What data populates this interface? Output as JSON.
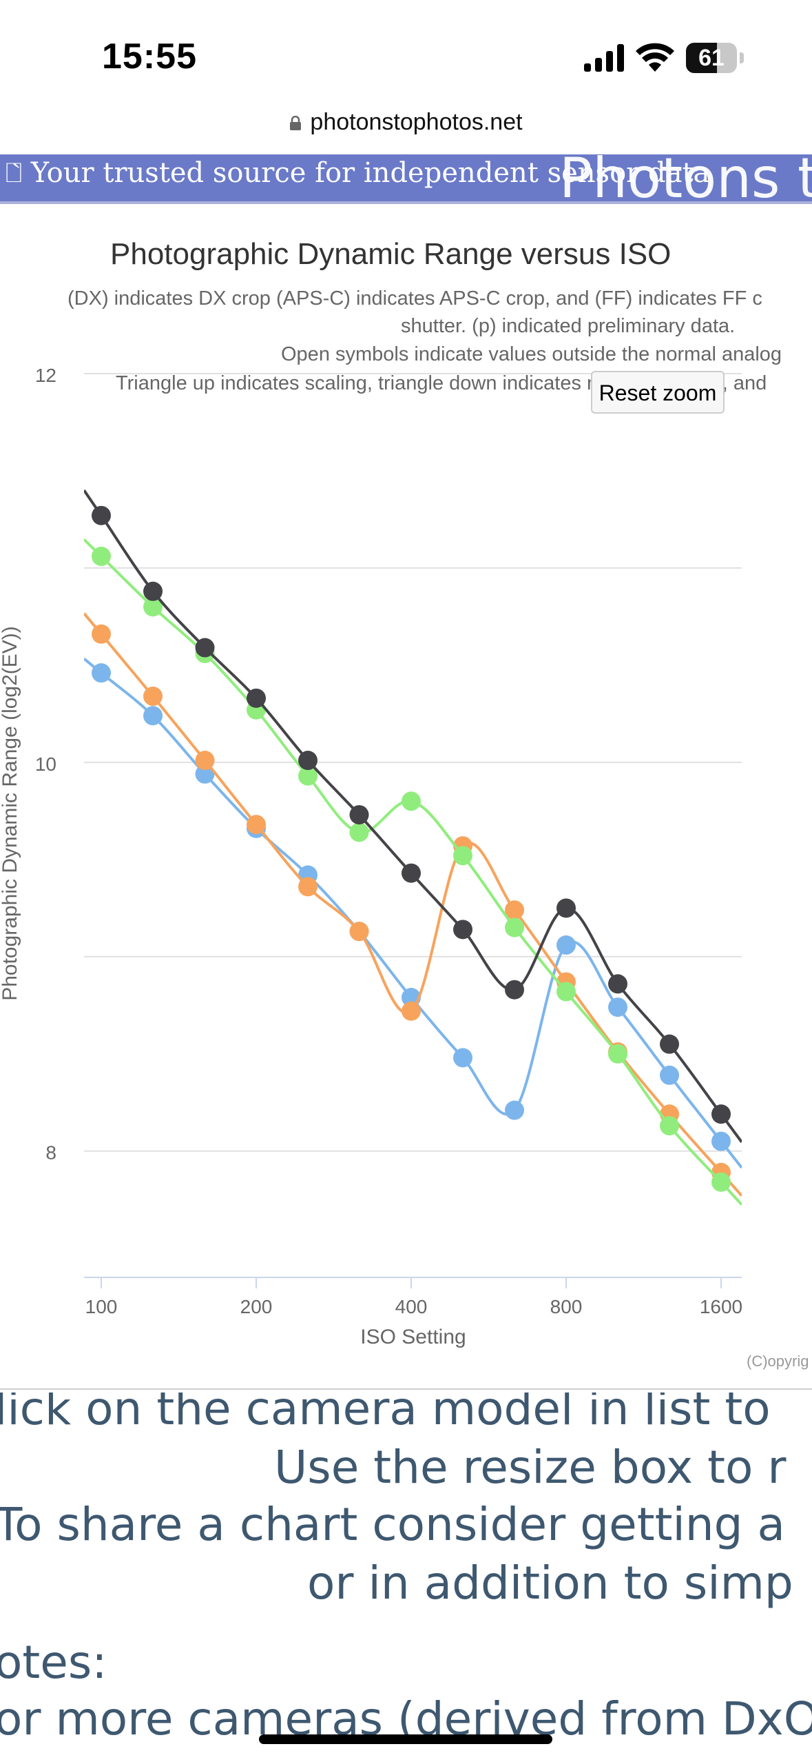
{
  "status_bar": {
    "time": "15:55",
    "battery": "61",
    "battery_level": 0.61
  },
  "browser": {
    "url": "photonstophotos.net"
  },
  "banner": {
    "subtitle": "Your trusted source for independent sensor data",
    "title": "Photons t"
  },
  "chart_text": {
    "title": "Photographic Dynamic Range versus ISO",
    "subtitle_lines": [
      "(DX) indicates DX crop (APS-C) indicates APS-C crop, and (FF) indicates FF c",
      "shutter. (p) indicated preliminary data.",
      "Open symbols indicate values outside the normal analog",
      "Triangle up indicates scaling, triangle down indicates noise reduction, and"
    ],
    "credit": "(C)opyrig"
  },
  "reset_zoom_label": "Reset zoom",
  "chart_data": {
    "type": "line",
    "title": "Photographic Dynamic Range versus ISO",
    "xlabel": "ISO Setting",
    "ylabel": "Photographic Dynamic Range (log2(EV))",
    "x_scale": "log2",
    "x_ticks": [
      100,
      200,
      400,
      800,
      1600
    ],
    "y_ticks": [
      8,
      10,
      12
    ],
    "xlim": [
      95,
      1750
    ],
    "ylim": [
      7.35,
      12
    ],
    "grid": true,
    "legend": "none",
    "x": [
      100,
      141,
      200,
      283,
      400,
      566,
      800,
      1131,
      1600
    ],
    "series": [
      {
        "color": "#434348",
        "marker_x": [
          100,
          126,
          159,
          200,
          252,
          317,
          400,
          504,
          635,
          800,
          1008,
          1270,
          1600
        ],
        "marker_y": [
          11.27,
          10.88,
          10.59,
          10.33,
          10.01,
          9.73,
          9.43,
          9.14,
          8.83,
          9.25,
          8.86,
          8.55,
          8.19
        ]
      },
      {
        "color": "#90ed7d",
        "marker_x": [
          100,
          126,
          159,
          200,
          252,
          317,
          400,
          504,
          635,
          800,
          1008,
          1270,
          1600
        ],
        "marker_y": [
          11.06,
          10.8,
          10.56,
          10.27,
          9.93,
          9.64,
          9.8,
          9.52,
          9.15,
          8.82,
          8.5,
          8.13,
          7.84
        ]
      },
      {
        "color": "#f7a35c",
        "marker_x": [
          100,
          126,
          159,
          200,
          252,
          317,
          400,
          504,
          635,
          800,
          1008,
          1270,
          1600
        ],
        "marker_y": [
          10.66,
          10.34,
          10.01,
          9.68,
          9.36,
          9.13,
          8.72,
          9.57,
          9.24,
          8.87,
          8.51,
          8.19,
          7.89
        ]
      },
      {
        "color": "#7cb5ec",
        "marker_x": [
          100,
          126,
          159,
          200,
          252,
          317,
          400,
          504,
          635,
          800,
          1008,
          1270,
          1600
        ],
        "marker_y": [
          10.46,
          10.24,
          9.94,
          9.66,
          9.42,
          9.13,
          8.79,
          8.48,
          8.21,
          9.06,
          8.74,
          8.39,
          8.05
        ]
      }
    ]
  },
  "notes": {
    "lines": [
      "lick on the camera model in list to",
      "Use the resize box to r",
      "To share a chart consider getting a",
      "or in addition to simp",
      "otes:",
      "or more cameras (derived from DxO"
    ]
  }
}
